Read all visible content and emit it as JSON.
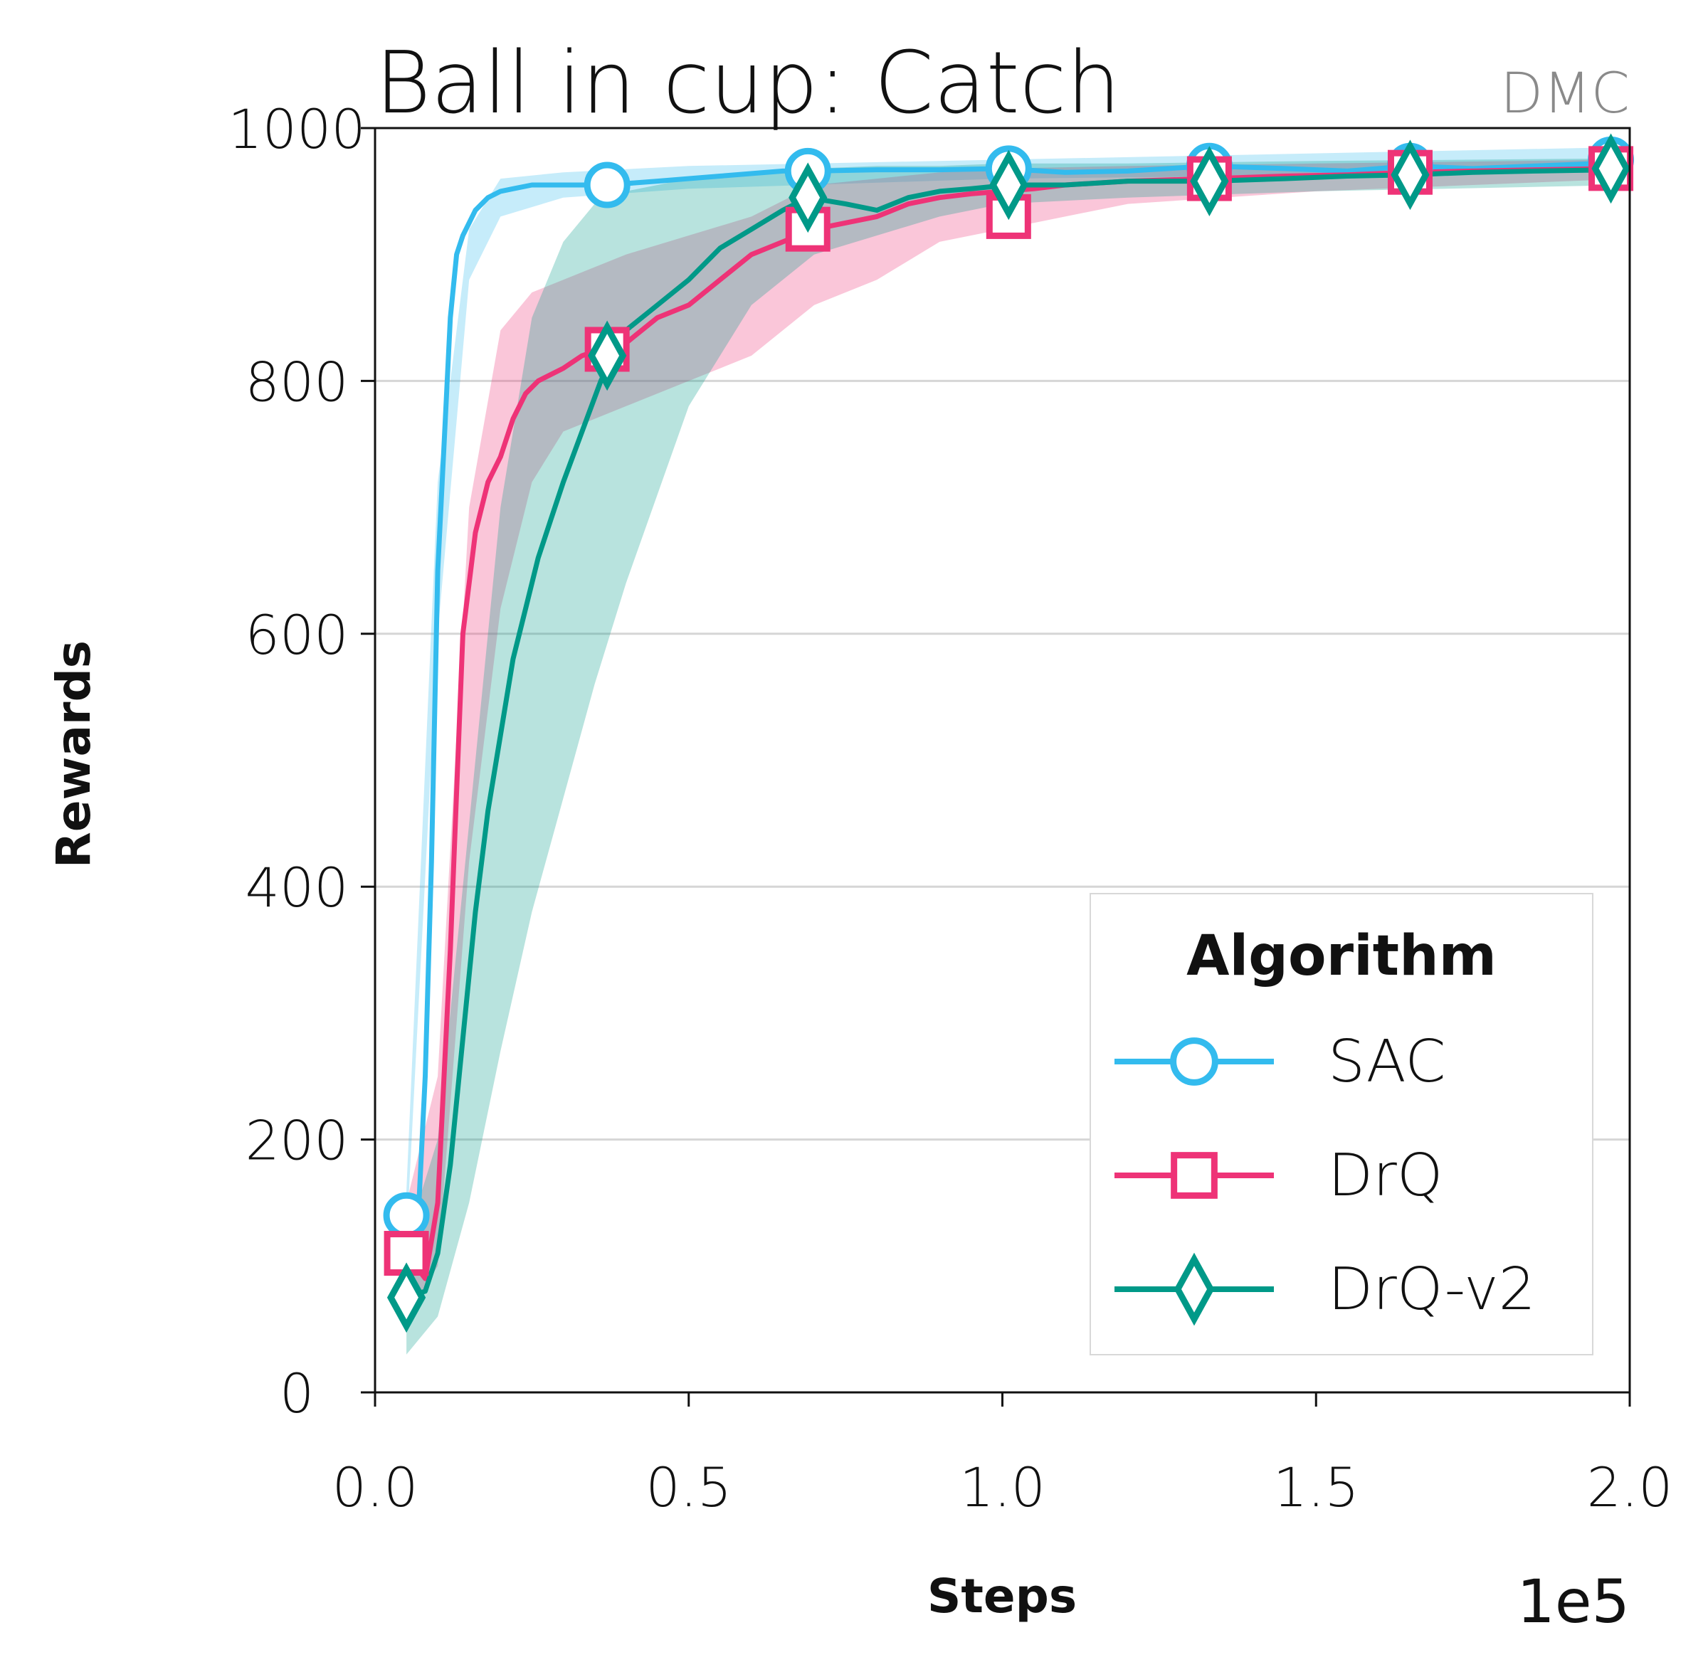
{
  "chart_data": {
    "type": "line",
    "title": "Ball in cup: Catch",
    "badge": "DMC",
    "xlabel": "Steps",
    "ylabel": "Rewards",
    "x_scale_label": "1e5",
    "xlim": [
      0,
      2.0
    ],
    "ylim": [
      0,
      1000
    ],
    "x_ticks": [
      "0.0",
      "0.5",
      "1.0",
      "1.5",
      "2.0"
    ],
    "x_tick_values": [
      0,
      0.5,
      1.0,
      1.5,
      2.0
    ],
    "y_ticks": [
      "0",
      "200",
      "400",
      "600",
      "800",
      "1000"
    ],
    "y_tick_values": [
      0,
      200,
      400,
      600,
      800,
      1000
    ],
    "grid": "horizontal",
    "legend": {
      "title": "Algorithm",
      "position": "lower-right"
    },
    "series": [
      {
        "name": "SAC",
        "color": "#33bbee",
        "marker": "circle",
        "x": [
          0.05,
          0.07,
          0.08,
          0.09,
          0.1,
          0.11,
          0.12,
          0.13,
          0.14,
          0.15,
          0.16,
          0.18,
          0.2,
          0.22,
          0.25,
          0.3,
          0.37,
          0.45,
          0.55,
          0.65,
          0.7,
          0.8,
          0.9,
          1.0,
          1.1,
          1.2,
          1.33,
          1.45,
          1.55,
          1.65,
          1.75,
          1.85,
          1.95,
          2.0
        ],
        "y": [
          140,
          150,
          250,
          420,
          650,
          750,
          850,
          900,
          915,
          925,
          935,
          945,
          950,
          952,
          955,
          955,
          955,
          958,
          962,
          966,
          966,
          967,
          967,
          968,
          965,
          966,
          970,
          968,
          966,
          970,
          968,
          970,
          972,
          975
        ],
        "marker_x": [
          0.05,
          0.37,
          0.69,
          1.01,
          1.33,
          1.65,
          1.97
        ],
        "marker_y": [
          140,
          955,
          966,
          968,
          970,
          970,
          975
        ],
        "band_x": [
          0.05,
          0.1,
          0.15,
          0.2,
          0.3,
          0.5,
          1.0,
          2.0
        ],
        "band_low": [
          120,
          600,
          880,
          930,
          945,
          952,
          960,
          965
        ],
        "band_high": [
          160,
          720,
          920,
          960,
          965,
          970,
          975,
          985
        ]
      },
      {
        "name": "DrQ",
        "color": "#ee3377",
        "marker": "square",
        "x": [
          0.05,
          0.08,
          0.1,
          0.12,
          0.14,
          0.16,
          0.18,
          0.2,
          0.22,
          0.24,
          0.26,
          0.28,
          0.3,
          0.33,
          0.36,
          0.4,
          0.45,
          0.5,
          0.55,
          0.6,
          0.65,
          0.7,
          0.75,
          0.8,
          0.85,
          0.9,
          0.95,
          1.0,
          1.05,
          1.1,
          1.2,
          1.33,
          1.45,
          1.55,
          1.65,
          1.75,
          1.85,
          1.97,
          2.0
        ],
        "y": [
          110,
          90,
          150,
          350,
          600,
          680,
          720,
          740,
          770,
          790,
          800,
          805,
          810,
          820,
          825,
          830,
          850,
          860,
          880,
          900,
          910,
          920,
          925,
          930,
          940,
          945,
          948,
          950,
          952,
          955,
          958,
          960,
          962,
          963,
          965,
          966,
          967,
          968,
          970
        ],
        "marker_x": [
          0.05,
          0.37,
          0.69,
          1.01,
          1.33,
          1.65,
          1.97
        ],
        "marker_y": [
          110,
          825,
          920,
          930,
          960,
          965,
          968
        ],
        "band_x": [
          0.05,
          0.1,
          0.15,
          0.2,
          0.25,
          0.3,
          0.4,
          0.5,
          0.6,
          0.7,
          0.8,
          0.9,
          1.0,
          1.2,
          1.5,
          2.0
        ],
        "band_low": [
          60,
          100,
          420,
          620,
          720,
          760,
          780,
          800,
          820,
          860,
          880,
          910,
          920,
          940,
          950,
          960
        ],
        "band_high": [
          150,
          250,
          700,
          840,
          870,
          880,
          900,
          915,
          930,
          955,
          960,
          965,
          968,
          970,
          972,
          975
        ]
      },
      {
        "name": "DrQ-v2",
        "color": "#009988",
        "marker": "diamond",
        "x": [
          0.05,
          0.08,
          0.1,
          0.12,
          0.14,
          0.16,
          0.18,
          0.2,
          0.22,
          0.24,
          0.26,
          0.28,
          0.3,
          0.33,
          0.36,
          0.4,
          0.45,
          0.5,
          0.55,
          0.6,
          0.65,
          0.69,
          0.75,
          0.8,
          0.85,
          0.9,
          0.95,
          1.01,
          1.1,
          1.2,
          1.33,
          1.45,
          1.55,
          1.65,
          1.75,
          1.85,
          1.97,
          2.0
        ],
        "y": [
          75,
          80,
          110,
          180,
          280,
          380,
          460,
          520,
          580,
          620,
          660,
          690,
          720,
          760,
          800,
          840,
          860,
          880,
          905,
          920,
          935,
          945,
          940,
          935,
          945,
          950,
          952,
          955,
          955,
          958,
          958,
          960,
          962,
          963,
          965,
          966,
          967,
          968
        ],
        "marker_x": [
          0.05,
          0.37,
          0.69,
          1.01,
          1.33,
          1.65,
          1.97
        ],
        "marker_y": [
          75,
          820,
          945,
          955,
          958,
          963,
          968
        ],
        "band_x": [
          0.05,
          0.1,
          0.15,
          0.2,
          0.25,
          0.3,
          0.35,
          0.4,
          0.5,
          0.6,
          0.7,
          0.8,
          0.9,
          1.0,
          1.2,
          1.5,
          2.0
        ],
        "band_low": [
          30,
          60,
          150,
          270,
          380,
          470,
          560,
          640,
          780,
          860,
          900,
          915,
          930,
          940,
          945,
          950,
          955
        ],
        "band_high": [
          120,
          200,
          450,
          700,
          850,
          910,
          940,
          950,
          960,
          965,
          968,
          970,
          970,
          972,
          972,
          974,
          976
        ]
      }
    ]
  }
}
